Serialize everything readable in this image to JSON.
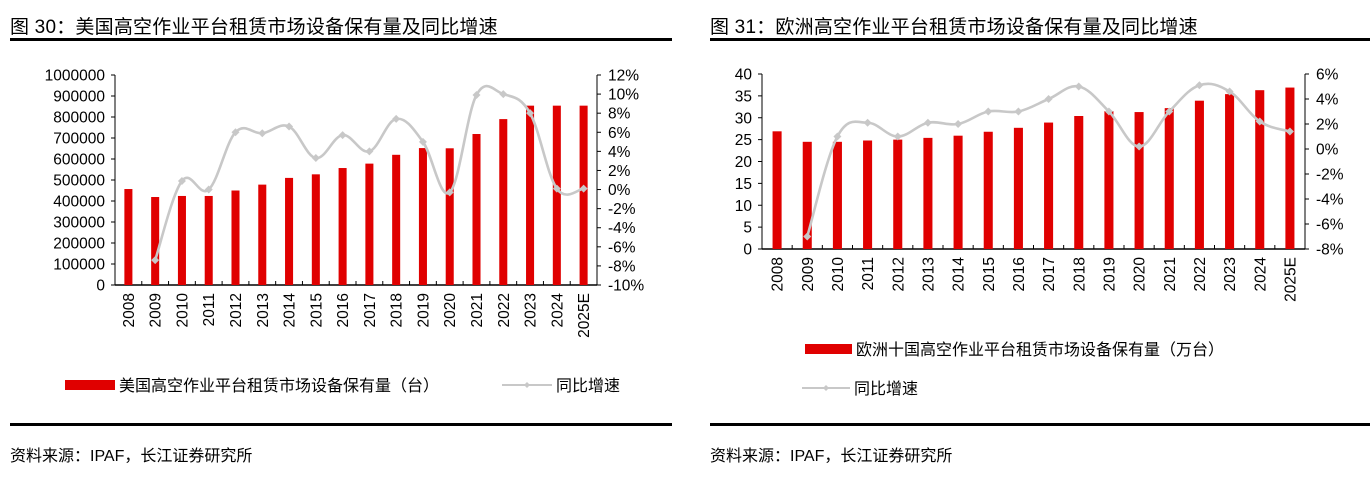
{
  "colors": {
    "bar": "#E00000",
    "line": "#C8C8C8",
    "axis": "#000000"
  },
  "chart_data": [
    {
      "type": "bar",
      "id": "us",
      "title": "图 30：美国高空作业平台租赁市场设备保有量及同比增速",
      "source": "资料来源：IPAF，长江证券研究所",
      "categories": [
        "2008",
        "2009",
        "2010",
        "2011",
        "2012",
        "2013",
        "2014",
        "2015",
        "2016",
        "2017",
        "2018",
        "2019",
        "2020",
        "2021",
        "2022",
        "2023",
        "2024",
        "2025E"
      ],
      "series": [
        {
          "name": "美国高空作业平台租赁市场设备保有量（台）",
          "type": "bar",
          "axis": "left",
          "values": [
            457000,
            419000,
            424000,
            424000,
            450000,
            478000,
            510000,
            527000,
            557000,
            578000,
            620000,
            652000,
            651000,
            719000,
            790000,
            854000,
            854000,
            854000
          ]
        },
        {
          "name": "同比增速",
          "type": "line",
          "axis": "right",
          "values": [
            null,
            -7.4,
            0.9,
            0.0,
            6.0,
            5.9,
            6.6,
            3.3,
            5.7,
            4.0,
            7.4,
            5.0,
            -0.3,
            9.9,
            10.0,
            8.0,
            0.1,
            0.1
          ]
        }
      ],
      "y_left": {
        "min": 0,
        "max": 1000000,
        "step": 100000,
        "ticks": [
          "0",
          "100000",
          "200000",
          "300000",
          "400000",
          "500000",
          "600000",
          "700000",
          "800000",
          "900000",
          "1000000"
        ]
      },
      "y_right": {
        "min": -10,
        "max": 12,
        "step": 2,
        "ticks": [
          "-10%",
          "-8%",
          "-6%",
          "-4%",
          "-2%",
          "0%",
          "2%",
          "4%",
          "6%",
          "8%",
          "10%",
          "12%"
        ]
      },
      "xlabel": "",
      "ylabel": "",
      "grid": false,
      "legend": "bottom",
      "legend_labels": [
        "美国高空作业平台租赁市场设备保有量（台）",
        "同比增速"
      ]
    },
    {
      "type": "bar",
      "id": "eu",
      "title": "图 31：欧洲高空作业平台租赁市场设备保有量及同比增速",
      "source": "资料来源：IPAF，长江证券研究所",
      "categories": [
        "2008",
        "2009",
        "2010",
        "2011",
        "2012",
        "2013",
        "2014",
        "2015",
        "2016",
        "2017",
        "2018",
        "2019",
        "2020",
        "2021",
        "2022",
        "2023",
        "2024",
        "2025E"
      ],
      "series": [
        {
          "name": "欧洲十国高空作业平台租赁市场设备保有量（万台）",
          "type": "bar",
          "axis": "left",
          "values": [
            26.9,
            24.5,
            24.5,
            24.8,
            25.0,
            25.4,
            25.9,
            26.8,
            27.7,
            28.9,
            30.4,
            31.5,
            31.3,
            32.2,
            33.9,
            35.4,
            36.3,
            36.9
          ]
        },
        {
          "name": "同比增速",
          "type": "line",
          "axis": "right",
          "values": [
            null,
            -7.0,
            1.0,
            2.1,
            1.0,
            2.1,
            2.0,
            3.0,
            3.0,
            4.0,
            5.0,
            3.0,
            0.2,
            3.0,
            5.1,
            4.6,
            2.2,
            1.4
          ]
        }
      ],
      "y_left": {
        "min": 0,
        "max": 40,
        "step": 5,
        "ticks": [
          "0",
          "5",
          "10",
          "15",
          "20",
          "25",
          "30",
          "35",
          "40"
        ]
      },
      "y_right": {
        "min": -8,
        "max": 6,
        "step": 2,
        "ticks": [
          "-8%",
          "-6%",
          "-4%",
          "-2%",
          "0%",
          "2%",
          "4%",
          "6%"
        ]
      },
      "xlabel": "",
      "ylabel": "",
      "grid": false,
      "legend": "bottom",
      "legend_labels": [
        "欧洲十国高空作业平台租赁市场设备保有量（万台）",
        "同比增速"
      ]
    }
  ]
}
